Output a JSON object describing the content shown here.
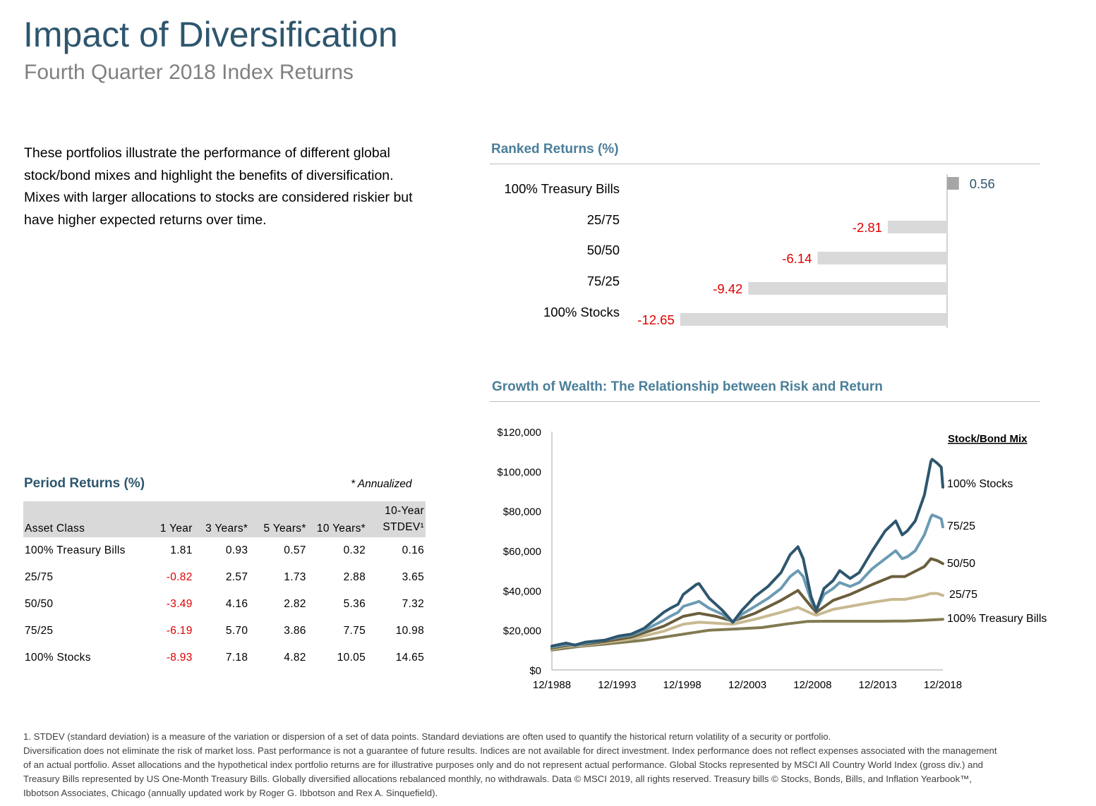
{
  "header": {
    "title": "Impact of Diversification",
    "subtitle": "Fourth Quarter 2018 Index Returns"
  },
  "intro": "These portfolios illustrate the performance of different global stock/bond mixes and highlight the benefits of diversification. Mixes with larger allocations to stocks are considered riskier but have higher expected returns over time.",
  "period_returns": {
    "title": "Period Returns (%)",
    "note": "* Annualized",
    "headers": [
      "Asset Class",
      "1 Year",
      "3 Years*",
      "5 Years*",
      "10 Years*",
      "10-Year STDEV¹"
    ],
    "rows": [
      {
        "cells": [
          "100% Treasury Bills",
          "1.81",
          "0.93",
          "0.57",
          "0.32",
          "0.16"
        ]
      },
      {
        "cells": [
          "25/75",
          "-0.82",
          "2.57",
          "1.73",
          "2.88",
          "3.65"
        ]
      },
      {
        "cells": [
          "50/50",
          "-3.49",
          "4.16",
          "2.82",
          "5.36",
          "7.32"
        ]
      },
      {
        "cells": [
          "75/25",
          "-6.19",
          "5.70",
          "3.86",
          "7.75",
          "10.98"
        ]
      },
      {
        "cells": [
          "100% Stocks",
          "-8.93",
          "7.18",
          "4.82",
          "10.05",
          "14.65"
        ]
      }
    ]
  },
  "colors": {
    "title": "#2e566e",
    "section_heading": "#4a7f99",
    "negative": "#e00000",
    "bar_positive": "#a6a6a6",
    "bar_negative": "#d9d9d9",
    "stocks_100": "#2e566e",
    "mix_75_25": "#6c9bb3",
    "mix_50_50": "#6b5e3c",
    "mix_25_75": "#c8b990",
    "tbills_100": "#817a52"
  },
  "chart_data": [
    {
      "type": "bar",
      "orientation": "horizontal",
      "title": "Ranked Returns (%)",
      "categories": [
        "100% Treasury Bills",
        "25/75",
        "50/50",
        "75/25",
        "100% Stocks"
      ],
      "values": [
        0.56,
        -2.81,
        -6.14,
        -9.42,
        -12.65
      ],
      "value_labels": [
        "0.56",
        "-2.81",
        "-6.14",
        "-9.42",
        "-12.65"
      ]
    },
    {
      "type": "line",
      "title": "Growth of Wealth: The Relationship between Risk and Return",
      "legend_title": "Stock/Bond Mix",
      "legend_position": "right",
      "xlim": [
        1988.917,
        2018.917
      ],
      "x_ticks": [
        "12/1988",
        "12/1993",
        "12/1998",
        "12/2003",
        "12/2008",
        "12/2013",
        "12/2018"
      ],
      "ylim": [
        0,
        120000
      ],
      "y_ticks": [
        "$0",
        "$20,000",
        "$40,000",
        "$60,000",
        "$80,000",
        "$100,000",
        "$120,000"
      ],
      "grid": false,
      "series": [
        {
          "name": "100% Stocks",
          "x": [
            1988.917,
            1990.0,
            1990.7,
            1991.5,
            1993.0,
            1994.0,
            1995.0,
            1996.0,
            1997.5,
            1998.0,
            1998.6,
            1999.0,
            2000.0,
            2000.2,
            2001.0,
            2002.0,
            2002.8,
            2003.5,
            2004.5,
            2005.5,
            2006.5,
            2007.2,
            2007.8,
            2008.2,
            2008.8,
            2009.2,
            2009.8,
            2010.5,
            2011.0,
            2011.8,
            2012.5,
            2013.5,
            2014.5,
            2015.3,
            2015.8,
            2016.2,
            2016.8,
            2017.5,
            2018.0,
            2018.1,
            2018.5,
            2018.8,
            2018.917
          ],
          "y": [
            12000,
            13500,
            12500,
            14000,
            15000,
            17000,
            18000,
            21000,
            29000,
            31000,
            33000,
            38000,
            43000,
            43500,
            36000,
            30000,
            24000,
            30000,
            37000,
            42000,
            49000,
            58000,
            62000,
            56000,
            37000,
            30000,
            41000,
            45000,
            50000,
            46000,
            49000,
            60000,
            70000,
            75000,
            68000,
            70000,
            75000,
            88000,
            105000,
            106000,
            104000,
            102000,
            92000
          ]
        },
        {
          "name": "75/25",
          "x": [
            1988.917,
            1990.0,
            1990.7,
            1991.5,
            1993.0,
            1994.0,
            1995.0,
            1996.0,
            1997.5,
            1998.0,
            1998.6,
            1999.0,
            2000.0,
            2000.2,
            2001.0,
            2002.0,
            2002.8,
            2003.5,
            2004.5,
            2005.5,
            2006.5,
            2007.2,
            2007.8,
            2008.2,
            2008.8,
            2009.2,
            2009.8,
            2010.5,
            2011.0,
            2011.8,
            2012.5,
            2013.5,
            2014.5,
            2015.3,
            2015.8,
            2016.2,
            2016.8,
            2017.5,
            2018.0,
            2018.1,
            2018.5,
            2018.8,
            2018.917
          ],
          "y": [
            11500,
            12800,
            12300,
            13500,
            15000,
            16500,
            17500,
            20000,
            25000,
            27000,
            29000,
            32000,
            34000,
            34500,
            31000,
            28000,
            24000,
            28000,
            32000,
            36000,
            41000,
            47000,
            50000,
            47000,
            35000,
            30000,
            38000,
            41000,
            44000,
            42000,
            44000,
            51000,
            56000,
            60000,
            56000,
            57000,
            60000,
            68000,
            77000,
            78000,
            77000,
            76000,
            72000
          ]
        },
        {
          "name": "50/50",
          "x": [
            1988.917,
            1990.0,
            1991.5,
            1993.0,
            1995.0,
            1997.5,
            1999.0,
            2000.2,
            2001.5,
            2002.8,
            2004.5,
            2006.5,
            2007.8,
            2008.8,
            2009.2,
            2010.5,
            2011.8,
            2013.5,
            2015.0,
            2016.0,
            2017.5,
            2018.0,
            2018.5,
            2018.917
          ],
          "y": [
            11000,
            12300,
            13000,
            14300,
            16500,
            22000,
            27000,
            28500,
            27000,
            24500,
            28500,
            35000,
            40000,
            32000,
            29000,
            35000,
            38000,
            43000,
            47000,
            47000,
            52000,
            56000,
            55000,
            53500
          ]
        },
        {
          "name": "25/75",
          "x": [
            1988.917,
            1990.0,
            1991.5,
            1993.0,
            1995.0,
            1997.5,
            1999.0,
            2000.2,
            2001.5,
            2002.8,
            2004.5,
            2006.5,
            2007.8,
            2008.8,
            2009.2,
            2010.5,
            2011.8,
            2013.5,
            2015.0,
            2016.0,
            2017.5,
            2018.0,
            2018.5,
            2018.917
          ],
          "y": [
            10500,
            11800,
            12500,
            13800,
            15500,
            19500,
            23000,
            24000,
            23500,
            23000,
            25500,
            29000,
            31500,
            28500,
            27500,
            30500,
            32000,
            34000,
            35500,
            35500,
            37500,
            38500,
            38500,
            37500
          ]
        },
        {
          "name": "100% Treasury Bills",
          "x": [
            1988.917,
            1991.0,
            1993.0,
            1996.0,
            1999.0,
            2001.0,
            2003.0,
            2005.0,
            2007.0,
            2008.5,
            2010.0,
            2014.0,
            2016.0,
            2017.5,
            2018.917
          ],
          "y": [
            10000,
            11800,
            13000,
            15000,
            18000,
            20000,
            20600,
            21300,
            23200,
            24400,
            24500,
            24500,
            24600,
            25000,
            25500
          ]
        }
      ]
    }
  ],
  "footnotes": [
    "1. STDEV (standard deviation) is a measure of the variation or dispersion of a set of data points. Standard deviations are often used to quantify the historical return volatility of a security or portfolio.",
    "Diversification does not eliminate the risk of market loss. Past performance is not a guarantee of future results. Indices are not available for direct investment. Index performance does not reflect expenses associated with the management of an actual portfolio. Asset allocations and the hypothetical index portfolio returns are for illustrative purposes only and do not represent actual performance. Global Stocks represented by MSCI All Country World Index (gross div.) and Treasury Bills represented by US One-Month Treasury Bills. Globally diversified allocations rebalanced monthly, no withdrawals. Data © MSCI 2019, all rights reserved. Treasury bills © Stocks, Bonds, Bills, and Inflation Yearbook™, Ibbotson Associates, Chicago (annually updated work by Roger G. Ibbotson and Rex A. Sinquefield)."
  ]
}
